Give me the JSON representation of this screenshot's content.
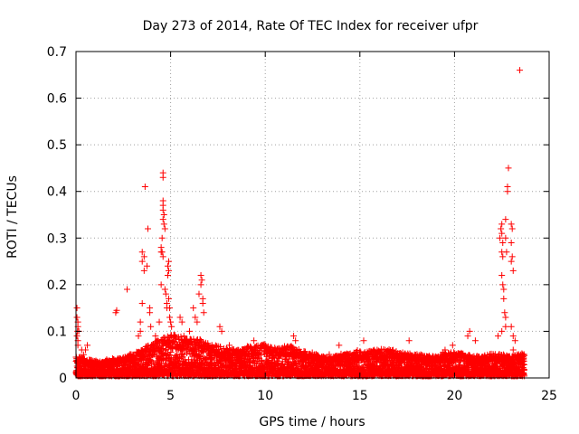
{
  "chart_data": {
    "type": "scatter",
    "title": "Day 273 of 2014, Rate Of TEC Index for receiver ufpr",
    "xlabel": "GPS time / hours",
    "ylabel": "ROTI / TECUs",
    "xlim": [
      0,
      25
    ],
    "ylim": [
      0,
      0.7
    ],
    "x_ticks": [
      "0",
      "5",
      "10",
      "15",
      "20",
      "25"
    ],
    "y_ticks": [
      "0",
      "0.1",
      "0.2",
      "0.3",
      "0.4",
      "0.5",
      "0.6",
      "0.7"
    ],
    "grid": true,
    "marker": "+",
    "color": "#ff0000",
    "series": [
      {
        "name": "ROTI",
        "points": [
          [
            0.05,
            0.15
          ],
          [
            0.05,
            0.13
          ],
          [
            0.1,
            0.12
          ],
          [
            0.1,
            0.11
          ],
          [
            0.05,
            0.09
          ],
          [
            0.1,
            0.08
          ],
          [
            0.08,
            0.1
          ],
          [
            0.15,
            0.1
          ],
          [
            0.1,
            0.07
          ],
          [
            0.3,
            0.06
          ],
          [
            0.5,
            0.06
          ],
          [
            0.6,
            0.07
          ],
          [
            0.4,
            0.05
          ],
          [
            2.1,
            0.14
          ],
          [
            2.15,
            0.145
          ],
          [
            2.7,
            0.19
          ],
          [
            3.3,
            0.09
          ],
          [
            3.4,
            0.1
          ],
          [
            3.4,
            0.12
          ],
          [
            3.5,
            0.16
          ],
          [
            3.5,
            0.25
          ],
          [
            3.5,
            0.27
          ],
          [
            3.6,
            0.26
          ],
          [
            3.6,
            0.23
          ],
          [
            3.65,
            0.41
          ],
          [
            3.75,
            0.24
          ],
          [
            3.8,
            0.32
          ],
          [
            3.9,
            0.15
          ],
          [
            3.9,
            0.14
          ],
          [
            3.95,
            0.11
          ],
          [
            4.0,
            0.07
          ],
          [
            4.1,
            0.06
          ],
          [
            4.2,
            0.09
          ],
          [
            4.3,
            0.08
          ],
          [
            4.4,
            0.12
          ],
          [
            4.5,
            0.2
          ],
          [
            4.5,
            0.27
          ],
          [
            4.5,
            0.28
          ],
          [
            4.55,
            0.3
          ],
          [
            4.6,
            0.44
          ],
          [
            4.6,
            0.43
          ],
          [
            4.6,
            0.38
          ],
          [
            4.6,
            0.36
          ],
          [
            4.65,
            0.35
          ],
          [
            4.6,
            0.34
          ],
          [
            4.65,
            0.33
          ],
          [
            4.7,
            0.32
          ],
          [
            4.6,
            0.37
          ],
          [
            4.55,
            0.27
          ],
          [
            4.6,
            0.26
          ],
          [
            4.7,
            0.19
          ],
          [
            4.75,
            0.18
          ],
          [
            4.8,
            0.16
          ],
          [
            4.8,
            0.15
          ],
          [
            4.85,
            0.22
          ],
          [
            4.85,
            0.24
          ],
          [
            4.9,
            0.25
          ],
          [
            4.9,
            0.23
          ],
          [
            4.9,
            0.17
          ],
          [
            4.95,
            0.15
          ],
          [
            4.95,
            0.13
          ],
          [
            5.0,
            0.12
          ],
          [
            5.05,
            0.11
          ],
          [
            5.5,
            0.13
          ],
          [
            5.6,
            0.12
          ],
          [
            5.7,
            0.09
          ],
          [
            6.0,
            0.1
          ],
          [
            6.2,
            0.15
          ],
          [
            6.3,
            0.13
          ],
          [
            6.4,
            0.12
          ],
          [
            6.5,
            0.18
          ],
          [
            6.6,
            0.2
          ],
          [
            6.6,
            0.22
          ],
          [
            6.65,
            0.21
          ],
          [
            6.7,
            0.17
          ],
          [
            6.7,
            0.16
          ],
          [
            6.75,
            0.14
          ],
          [
            7.6,
            0.11
          ],
          [
            7.7,
            0.1
          ],
          [
            8.1,
            0.07
          ],
          [
            9.4,
            0.08
          ],
          [
            11.5,
            0.09
          ],
          [
            11.6,
            0.08
          ],
          [
            13.9,
            0.07
          ],
          [
            15.2,
            0.08
          ],
          [
            17.6,
            0.08
          ],
          [
            19.5,
            0.06
          ],
          [
            19.9,
            0.07
          ],
          [
            20.7,
            0.09
          ],
          [
            20.8,
            0.1
          ],
          [
            21.1,
            0.08
          ],
          [
            22.3,
            0.09
          ],
          [
            22.5,
            0.1
          ],
          [
            22.4,
            0.3
          ],
          [
            22.45,
            0.32
          ],
          [
            22.5,
            0.33
          ],
          [
            22.5,
            0.31
          ],
          [
            22.55,
            0.29
          ],
          [
            22.5,
            0.27
          ],
          [
            22.55,
            0.26
          ],
          [
            22.5,
            0.22
          ],
          [
            22.55,
            0.2
          ],
          [
            22.6,
            0.19
          ],
          [
            22.6,
            0.17
          ],
          [
            22.65,
            0.14
          ],
          [
            22.7,
            0.13
          ],
          [
            22.7,
            0.11
          ],
          [
            22.7,
            0.34
          ],
          [
            22.7,
            0.3
          ],
          [
            22.75,
            0.27
          ],
          [
            22.8,
            0.41
          ],
          [
            22.8,
            0.4
          ],
          [
            22.85,
            0.45
          ],
          [
            23.0,
            0.33
          ],
          [
            23.05,
            0.32
          ],
          [
            23.0,
            0.29
          ],
          [
            23.0,
            0.25
          ],
          [
            23.05,
            0.26
          ],
          [
            23.1,
            0.23
          ],
          [
            23.0,
            0.11
          ],
          [
            23.1,
            0.09
          ],
          [
            23.2,
            0.08
          ],
          [
            23.1,
            0.06
          ],
          [
            23.3,
            0.05
          ],
          [
            23.4,
            0.045
          ],
          [
            23.5,
            0.05
          ],
          [
            23.55,
            0.04
          ],
          [
            23.6,
            0.05
          ],
          [
            23.5,
            0.03
          ],
          [
            23.6,
            0.035
          ],
          [
            23.4,
            0.03
          ],
          [
            23.45,
            0.66
          ]
        ]
      }
    ],
    "band": {
      "description": "dense low-level noise band of ROTI samples",
      "x": [
        0,
        0.5,
        1,
        1.5,
        2,
        2.5,
        3,
        3.5,
        4,
        4.5,
        5,
        5.5,
        6,
        6.5,
        7,
        7.5,
        8,
        8.5,
        9,
        9.5,
        10,
        10.5,
        11,
        11.5,
        12,
        12.5,
        13,
        13.5,
        14,
        14.5,
        15,
        15.5,
        16,
        16.5,
        17,
        17.5,
        18,
        18.5,
        19,
        19.5,
        20,
        20.5,
        21,
        21.5,
        22,
        22.5,
        23,
        23.5
      ],
      "y_max": [
        0.045,
        0.04,
        0.035,
        0.035,
        0.04,
        0.045,
        0.05,
        0.06,
        0.07,
        0.08,
        0.09,
        0.085,
        0.08,
        0.08,
        0.07,
        0.065,
        0.06,
        0.06,
        0.065,
        0.065,
        0.07,
        0.06,
        0.065,
        0.065,
        0.055,
        0.05,
        0.045,
        0.045,
        0.05,
        0.05,
        0.055,
        0.055,
        0.06,
        0.06,
        0.055,
        0.05,
        0.05,
        0.045,
        0.045,
        0.05,
        0.055,
        0.05,
        0.045,
        0.045,
        0.05,
        0.05,
        0.045,
        0.05
      ]
    }
  }
}
